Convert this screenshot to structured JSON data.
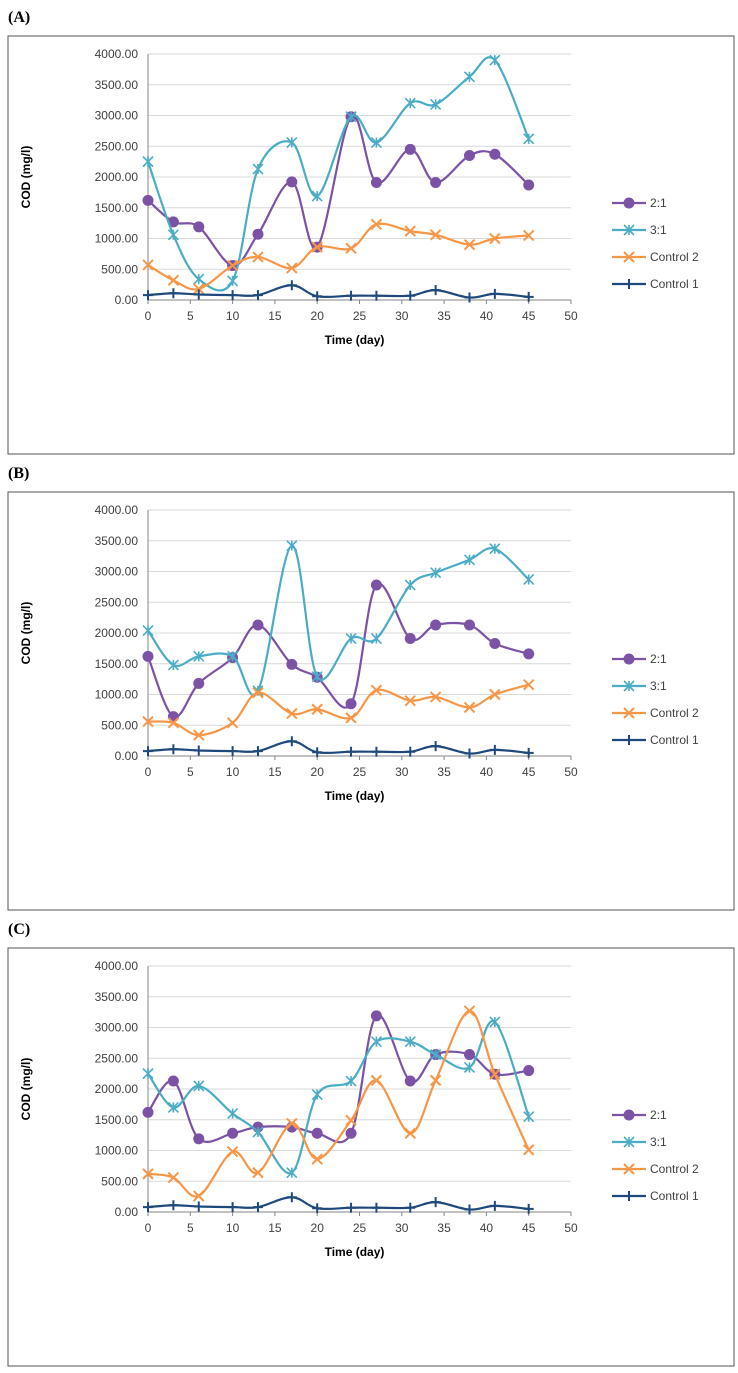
{
  "chart_data": [
    {
      "type": "line",
      "label": "(A)",
      "y_label": "COD (mg/l)",
      "x_label": "Time (day)",
      "x": [
        0,
        3,
        6,
        10,
        13,
        17,
        20,
        24,
        27,
        31,
        34,
        38,
        41,
        45
      ],
      "xlim": [
        0,
        50
      ],
      "xticks": [
        0,
        5,
        10,
        15,
        20,
        25,
        30,
        35,
        40,
        45,
        50
      ],
      "ylim": [
        0,
        4000
      ],
      "yticks": [
        {
          "value": 0,
          "label": "0.00"
        },
        {
          "value": 500,
          "label": "500.00"
        },
        {
          "value": 1000,
          "label": "1000.00"
        },
        {
          "value": 1500,
          "label": "1500.00"
        },
        {
          "value": 2000,
          "label": "2000.00"
        },
        {
          "value": 2500,
          "label": "2500.00"
        },
        {
          "value": 3000,
          "label": "3000.00"
        },
        {
          "value": 3500,
          "label": "3500.00"
        },
        {
          "value": 4000,
          "label": "4000.00"
        }
      ],
      "grid": true,
      "series": [
        {
          "name": "2:1",
          "color": "#7b52a6",
          "marker": "circle",
          "values": [
            1620,
            1270,
            1190,
            560,
            1070,
            1920,
            860,
            2980,
            1910,
            2450,
            1910,
            2350,
            2370,
            1870
          ]
        },
        {
          "name": "3:1",
          "color": "#4bacc6",
          "marker": "star",
          "values": [
            2250,
            1060,
            340,
            310,
            2130,
            2560,
            1690,
            2980,
            2560,
            3200,
            3180,
            3630,
            3900,
            2620
          ]
        },
        {
          "name": "Control 2",
          "color": "#f79646",
          "marker": "x",
          "values": [
            570,
            320,
            180,
            560,
            700,
            520,
            860,
            840,
            1230,
            1120,
            1060,
            900,
            1000,
            1050
          ]
        },
        {
          "name": "Control 1",
          "color": "#1f497d",
          "marker": "plus",
          "values": [
            80,
            110,
            90,
            80,
            80,
            240,
            60,
            70,
            70,
            70,
            160,
            40,
            100,
            50
          ]
        }
      ]
    },
    {
      "type": "line",
      "label": "(B)",
      "y_label": "COD (mg/l)",
      "x_label": "Time (day)",
      "x": [
        0,
        3,
        6,
        10,
        13,
        17,
        20,
        24,
        27,
        31,
        34,
        38,
        41,
        45
      ],
      "xlim": [
        0,
        50
      ],
      "xticks": [
        0,
        5,
        10,
        15,
        20,
        25,
        30,
        35,
        40,
        45,
        50
      ],
      "ylim": [
        0,
        4000
      ],
      "yticks": [
        {
          "value": 0,
          "label": "0.00"
        },
        {
          "value": 500,
          "label": "500.00"
        },
        {
          "value": 1000,
          "label": "1000.00"
        },
        {
          "value": 1500,
          "label": "1500.00"
        },
        {
          "value": 2000,
          "label": "2000.00"
        },
        {
          "value": 2500,
          "label": "2500.00"
        },
        {
          "value": 3000,
          "label": "3000.00"
        },
        {
          "value": 3500,
          "label": "3500.00"
        },
        {
          "value": 4000,
          "label": "4000.00"
        }
      ],
      "grid": true,
      "series": [
        {
          "name": "2:1",
          "color": "#7b52a6",
          "marker": "circle",
          "values": [
            1620,
            640,
            1180,
            1600,
            2130,
            1490,
            1280,
            850,
            2780,
            1910,
            2130,
            2130,
            1830,
            1660
          ]
        },
        {
          "name": "3:1",
          "color": "#4bacc6",
          "marker": "star",
          "values": [
            2040,
            1480,
            1620,
            1620,
            1060,
            3420,
            1290,
            1910,
            1910,
            2780,
            2980,
            3190,
            3370,
            2870
          ]
        },
        {
          "name": "Control 2",
          "color": "#f79646",
          "marker": "x",
          "values": [
            560,
            540,
            340,
            540,
            1030,
            690,
            760,
            620,
            1070,
            900,
            960,
            790,
            1000,
            1160
          ]
        },
        {
          "name": "Control 1",
          "color": "#1f497d",
          "marker": "plus",
          "values": [
            80,
            110,
            90,
            80,
            80,
            240,
            60,
            70,
            70,
            70,
            160,
            40,
            100,
            50
          ]
        }
      ]
    },
    {
      "type": "line",
      "label": "(C)",
      "y_label": "COD (mg/l)",
      "x_label": "Time (day)",
      "x": [
        0,
        3,
        6,
        10,
        13,
        17,
        20,
        24,
        27,
        31,
        34,
        38,
        41,
        45
      ],
      "xlim": [
        0,
        50
      ],
      "xticks": [
        0,
        5,
        10,
        15,
        20,
        25,
        30,
        35,
        40,
        45,
        50
      ],
      "ylim": [
        0,
        4000
      ],
      "yticks": [
        {
          "value": 0,
          "label": "0.00"
        },
        {
          "value": 500,
          "label": "500.00"
        },
        {
          "value": 1000,
          "label": "1000.00"
        },
        {
          "value": 1500,
          "label": "1500.00"
        },
        {
          "value": 2000,
          "label": "2000.00"
        },
        {
          "value": 2500,
          "label": "2500.00"
        },
        {
          "value": 3000,
          "label": "3000.00"
        },
        {
          "value": 3500,
          "label": "3500.00"
        },
        {
          "value": 4000,
          "label": "4000.00"
        }
      ],
      "grid": true,
      "series": [
        {
          "name": "2:1",
          "color": "#7b52a6",
          "marker": "circle",
          "values": [
            1620,
            2130,
            1190,
            1280,
            1380,
            1380,
            1280,
            1280,
            3190,
            2130,
            2560,
            2560,
            2240,
            2300
          ]
        },
        {
          "name": "3:1",
          "color": "#4bacc6",
          "marker": "star",
          "values": [
            2250,
            1700,
            2050,
            1600,
            1300,
            640,
            1910,
            2130,
            2770,
            2770,
            2560,
            2350,
            3090,
            1550
          ]
        },
        {
          "name": "Control 2",
          "color": "#f79646",
          "marker": "x",
          "values": [
            620,
            560,
            260,
            980,
            640,
            1440,
            860,
            1490,
            2140,
            1280,
            2140,
            3270,
            2240,
            1010
          ]
        },
        {
          "name": "Control 1",
          "color": "#1f497d",
          "marker": "plus",
          "values": [
            80,
            110,
            90,
            80,
            80,
            240,
            60,
            70,
            70,
            70,
            160,
            40,
            100,
            50
          ]
        }
      ]
    }
  ]
}
